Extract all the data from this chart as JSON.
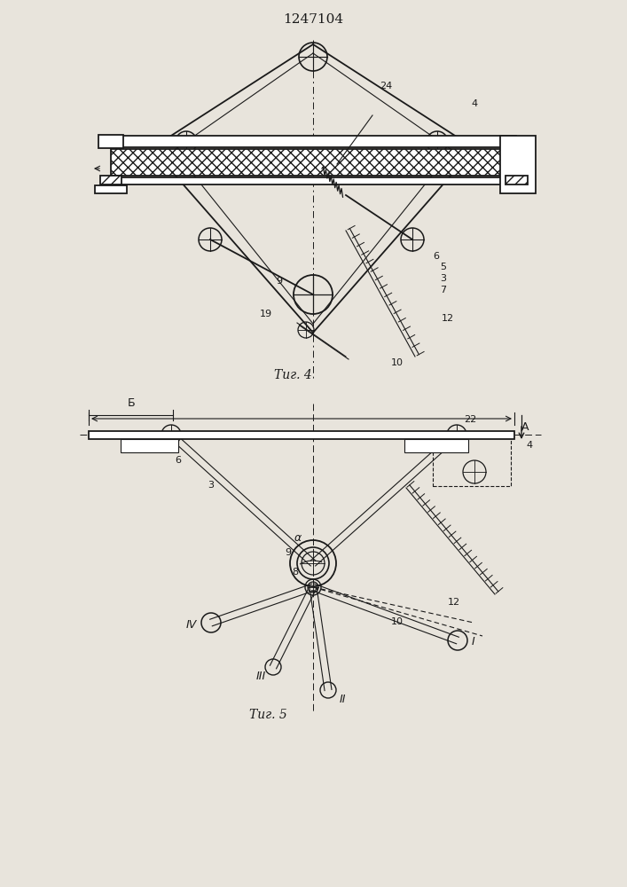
{
  "title": "1247104",
  "fig4_label": "Τиг. 4",
  "fig5_label": "Τиг. 5",
  "bg_color": "#e8e4dc",
  "line_color": "#1a1a1a"
}
